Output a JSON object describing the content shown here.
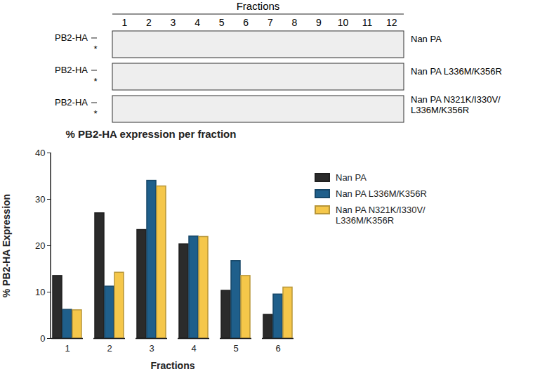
{
  "blot": {
    "title": "Fractions",
    "lanes": [
      1,
      2,
      3,
      4,
      5,
      6,
      7,
      8,
      9,
      10,
      11,
      12
    ],
    "rows": [
      {
        "label": "PB2-HA",
        "band_mark": "*",
        "name": "Nan PA"
      },
      {
        "label": "PB2-HA",
        "band_mark": "*",
        "name": "Nan PA L336M/K356R"
      },
      {
        "label": "PB2-HA",
        "band_mark": "*",
        "name": "Nan PA N321K/I330V/L336M/K356R"
      }
    ]
  },
  "chart_data": {
    "type": "bar",
    "title": "% PB2-HA expression per fraction",
    "x_label": "Fractions",
    "y_label": "% PB2-HA Expression",
    "categories": [
      "1",
      "2",
      "3",
      "4",
      "5",
      "6"
    ],
    "series": [
      {
        "name": "Nan PA",
        "color": "#2b2b2b",
        "values": [
          13.5,
          27,
          23.4,
          20.3,
          10.3,
          5.1
        ]
      },
      {
        "name": "Nan PA L336M/K356R",
        "color": "#1f5f8b",
        "values": [
          6.2,
          11.2,
          34,
          22,
          16.7,
          9.5
        ]
      },
      {
        "name": "Nan PA N321K/I330V/L336M/K356R",
        "color": "#f5c74a",
        "values": [
          6.1,
          14.2,
          32.8,
          21.9,
          13.5,
          11
        ]
      }
    ],
    "ylim": [
      0,
      40
    ],
    "yticks": [
      0,
      10,
      20,
      30,
      40
    ],
    "grid": false,
    "legend": "right"
  }
}
